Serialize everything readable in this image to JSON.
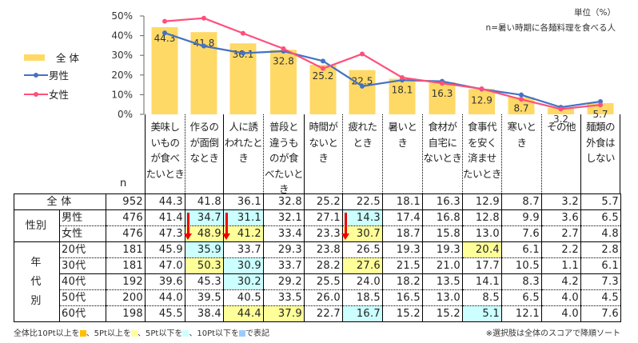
{
  "unit_note": "単位（%）",
  "n_note": "n=暑い時期に各麺料理を食べる人",
  "legend": [
    {
      "label": "全 体",
      "color": "#FFD966"
    },
    {
      "label": "男性",
      "color": "#4472C4"
    },
    {
      "label": "女性",
      "color": "#FF4F7B"
    }
  ],
  "chart_data": {
    "type": "bar",
    "categories": [
      "美味し\nいもの\nが食べ\nたいとき",
      "作るの\nが面倒\nなとき",
      "人に誘\nわれたと\nき",
      "普段と\n違うも\nのが食\nべたいと\nき",
      "時間が\nないとき",
      "疲れた\nとき",
      "暑いと\nき",
      "食材が\n自宅に\nないとき",
      "食事代\nを安く\n済ませ\nたいとき",
      "寒いと\nき",
      "その他",
      "麺類の\n外食は\nしない"
    ],
    "yticks": [
      "0%",
      "10%",
      "20%",
      "30%",
      "40%",
      "50%"
    ],
    "ylim": [
      0,
      50
    ],
    "series": [
      {
        "name": "全 体",
        "type": "bar",
        "values": [
          44.3,
          41.8,
          36.1,
          32.8,
          25.2,
          22.5,
          18.1,
          16.3,
          12.9,
          8.7,
          3.2,
          5.7
        ]
      },
      {
        "name": "男性",
        "type": "line",
        "values": [
          41.4,
          34.7,
          31.1,
          32.1,
          27.1,
          14.3,
          17.4,
          16.8,
          12.8,
          9.9,
          3.6,
          6.5
        ]
      },
      {
        "name": "女性",
        "type": "line",
        "values": [
          47.3,
          48.9,
          41.2,
          33.4,
          23.3,
          30.7,
          18.7,
          15.8,
          13.0,
          7.6,
          2.7,
          4.8
        ]
      }
    ]
  },
  "table": {
    "n_header": "n",
    "rows": [
      {
        "group": "全 体",
        "label": "",
        "n": "952",
        "values": [
          "44.3",
          "41.8",
          "36.1",
          "32.8",
          "25.2",
          "22.5",
          "18.1",
          "16.3",
          "12.9",
          "8.7",
          "3.2",
          "5.7"
        ],
        "hl": {}
      },
      {
        "group": "性別",
        "label": "男性",
        "n": "476",
        "values": [
          "41.4",
          "34.7",
          "31.1",
          "32.1",
          "27.1",
          "14.3",
          "17.4",
          "16.8",
          "12.8",
          "9.9",
          "3.6",
          "6.5"
        ],
        "hl": {
          "1": "low5",
          "2": "low5",
          "5": "low5"
        }
      },
      {
        "group": "",
        "label": "女性",
        "n": "476",
        "values": [
          "47.3",
          "48.9",
          "41.2",
          "33.4",
          "23.3",
          "30.7",
          "18.7",
          "15.8",
          "13.0",
          "7.6",
          "2.7",
          "4.8"
        ],
        "hl": {
          "1": "high5",
          "2": "high5",
          "5": "high5"
        },
        "arrows": [
          1,
          2,
          5
        ]
      },
      {
        "group": "年\n代\n別",
        "label": "20代",
        "n": "181",
        "values": [
          "45.9",
          "35.9",
          "33.7",
          "29.3",
          "23.8",
          "26.5",
          "19.3",
          "19.3",
          "20.4",
          "6.1",
          "2.2",
          "2.8"
        ],
        "hl": {
          "1": "low5",
          "8": "high5"
        }
      },
      {
        "group": "",
        "label": "30代",
        "n": "181",
        "values": [
          "47.0",
          "50.3",
          "30.9",
          "33.7",
          "28.2",
          "27.6",
          "21.5",
          "21.0",
          "17.7",
          "10.5",
          "1.1",
          "6.1"
        ],
        "hl": {
          "1": "high5",
          "2": "low5",
          "5": "high5"
        }
      },
      {
        "group": "",
        "label": "40代",
        "n": "192",
        "values": [
          "39.6",
          "45.3",
          "30.2",
          "29.2",
          "25.5",
          "24.0",
          "18.2",
          "13.5",
          "14.1",
          "8.3",
          "4.2",
          "7.3"
        ],
        "hl": {
          "2": "low5"
        }
      },
      {
        "group": "",
        "label": "50代",
        "n": "200",
        "values": [
          "44.0",
          "39.5",
          "40.5",
          "33.5",
          "26.0",
          "18.5",
          "16.5",
          "13.0",
          "8.5",
          "6.5",
          "4.0",
          "4.5"
        ],
        "hl": {}
      },
      {
        "group": "",
        "label": "60代",
        "n": "198",
        "values": [
          "45.5",
          "38.4",
          "44.4",
          "37.9",
          "22.7",
          "16.7",
          "15.2",
          "15.2",
          "5.1",
          "12.1",
          "4.0",
          "7.6"
        ],
        "hl": {
          "2": "high5",
          "3": "high5",
          "5": "low5",
          "8": "low5"
        }
      }
    ]
  },
  "highlight_colors": {
    "high10": "#FFC000",
    "high5": "#FFFF99",
    "low5": "#CCFFFF",
    "low10": "#99CCFF"
  },
  "footnote": {
    "p1": "全体比10Pt以上を",
    "p2": "、5Pt以上を",
    "p3": "、5Pt以下を",
    "p4": "、10Pt以下を",
    "p5": "で表記"
  },
  "sort_note": "※選択肢は全体のスコアで降順ソート"
}
